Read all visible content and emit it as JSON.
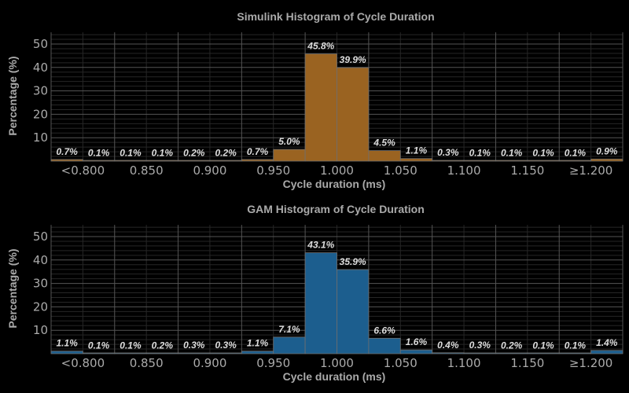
{
  "chart_data": [
    {
      "type": "bar",
      "title": "Simulink Histogram of Cycle Duration",
      "xlabel": "Cycle duration (ms)",
      "ylabel": "Percentage (%)",
      "color": "#9a6321",
      "xtick_labels": [
        "<0.800",
        "0.850",
        "0.900",
        "0.950",
        "1.000",
        "1.050",
        "1.100",
        "1.150",
        "≥1.200"
      ],
      "ytick_labels": [
        10,
        20,
        30,
        40,
        50
      ],
      "ylim": [
        0,
        55
      ],
      "values": [
        0.7,
        0.1,
        0.1,
        0.1,
        0.2,
        0.2,
        0.7,
        5.0,
        45.8,
        39.9,
        4.5,
        1.1,
        0.3,
        0.1,
        0.1,
        0.1,
        0.1,
        0.9
      ],
      "labels": [
        "0.7%",
        "0.1%",
        "0.1%",
        "0.1%",
        "0.2%",
        "0.2%",
        "0.7%",
        "5.0%",
        "45.8%",
        "39.9%",
        "4.5%",
        "1.1%",
        "0.3%",
        "0.1%",
        "0.1%",
        "0.1%",
        "0.1%",
        "0.9%"
      ],
      "grid": true
    },
    {
      "type": "bar",
      "title": "GAM Histogram of Cycle Duration",
      "xlabel": "Cycle duration (ms)",
      "ylabel": "Percentage (%)",
      "color": "#1c5e8e",
      "xtick_labels": [
        "<0.800",
        "0.850",
        "0.900",
        "0.950",
        "1.000",
        "1.050",
        "1.100",
        "1.150",
        "≥1.200"
      ],
      "ytick_labels": [
        10,
        20,
        30,
        40,
        50
      ],
      "ylim": [
        0,
        55
      ],
      "values": [
        1.1,
        0.1,
        0.1,
        0.2,
        0.3,
        0.3,
        1.1,
        7.1,
        43.1,
        35.9,
        6.6,
        1.6,
        0.4,
        0.3,
        0.2,
        0.1,
        0.1,
        1.4
      ],
      "labels": [
        "1.1%",
        "0.1%",
        "0.1%",
        "0.2%",
        "0.3%",
        "0.3%",
        "1.1%",
        "7.1%",
        "43.1%",
        "35.9%",
        "6.6%",
        "1.6%",
        "0.4%",
        "0.3%",
        "0.2%",
        "0.1%",
        "0.1%",
        "1.4%"
      ],
      "grid": true
    }
  ]
}
